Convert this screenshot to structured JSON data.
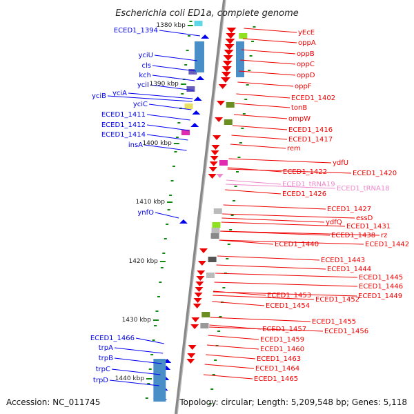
{
  "title": "Escherichia coli ED1a, complete genome",
  "footer": {
    "accession": "Accession: NC_011745",
    "topology": "Topology: circular; Length: 5,209,548 bp; Genes: 5,118"
  },
  "colors": {
    "forward": "#0000ee",
    "reverse": "#ee0000",
    "rna": "#ee88cc",
    "axis": "#777777",
    "tick": "#118811"
  },
  "scale": {
    "labels": [
      "1380 kbp",
      "1390 kbp",
      "1400 kbp",
      "1410 kbp",
      "1420 kbp",
      "1430 kbp",
      "1440 kbp"
    ]
  },
  "left_genes": [
    "ECED1_1394",
    "yciU",
    "cls",
    "kch",
    "yciI",
    "yciA",
    "yciB",
    "yciC",
    "ECED1_1411",
    "ECED1_1412",
    "ECED1_1414",
    "insA",
    "ynfO",
    "ECED1_1466",
    "trpA",
    "trpB",
    "trpC",
    "trpD"
  ],
  "right_genes": [
    "yEcE",
    "oppA",
    "oppB",
    "oppC",
    "oppD",
    "oppF",
    "ECED1_1402",
    "tonB",
    "ompW",
    "ECED1_1416",
    "ECED1_1417",
    "rem",
    "ydfU",
    "ECED1_1422",
    "ECED1_1420",
    "ECED1_tRNA19",
    "ECED1_tRNA18",
    "ECED1_1426",
    "ECED1_1427",
    "essD",
    "ydfQ",
    "ECED1_1431",
    "ECED1_1438",
    "rz",
    "ECED1_1440",
    "ECED1_1442",
    "ECED1_1443",
    "ECED1_1444",
    "ECED1_1445",
    "ECED1_1446",
    "ECED1_1453",
    "ECED1_1449",
    "ECED1_1452",
    "ECED1_1454",
    "ECED1_1455",
    "ECED1_1457",
    "ECED1_1456",
    "ECED1_1459",
    "ECED1_1460",
    "ECED1_1463",
    "ECED1_1464",
    "ECED1_1465"
  ],
  "rna_genes": [
    "ECED1_tRNA19",
    "ECED1_tRNA18"
  ]
}
